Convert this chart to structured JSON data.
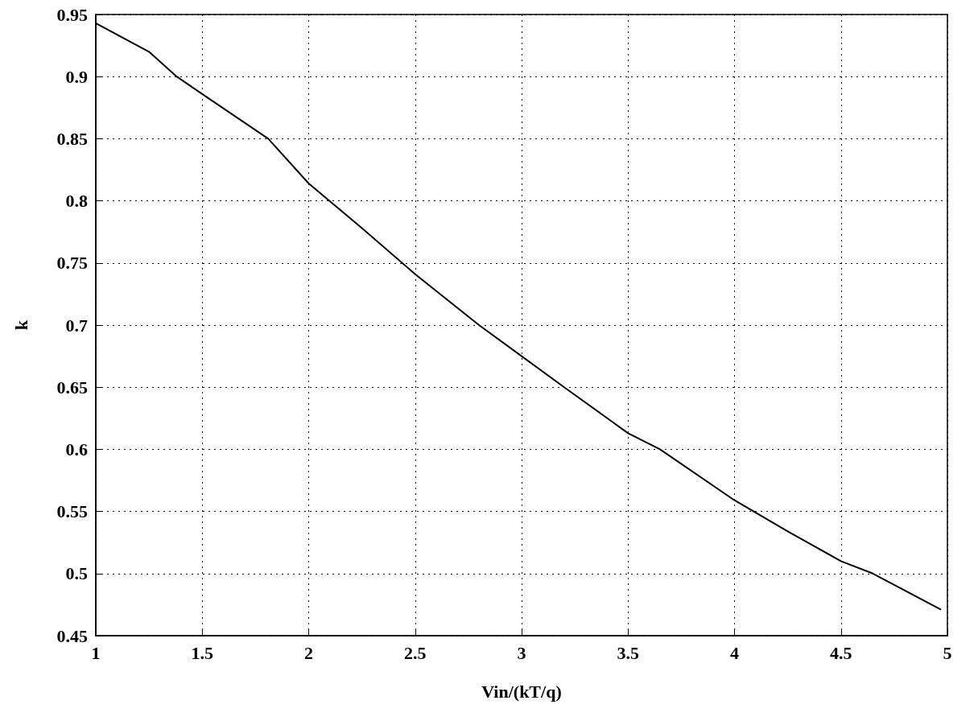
{
  "chart_data": {
    "type": "line",
    "xlabel": "Vin/(kT/q)",
    "ylabel": "k",
    "series": [
      {
        "color": "#000000",
        "x": [
          1,
          1.25,
          1.38,
          1.5,
          1.81,
          2,
          2.25,
          2.5,
          2.8,
          3,
          3.2,
          3.5,
          3.65,
          4,
          4.25,
          4.5,
          4.65,
          4.97
        ],
        "values": [
          0.943,
          0.92,
          0.9,
          0.886,
          0.85,
          0.814,
          0.778,
          0.741,
          0.7,
          0.675,
          0.65,
          0.613,
          0.6,
          0.559,
          0.534,
          0.51,
          0.5,
          0.471
        ]
      }
    ],
    "xlim": [
      1,
      5
    ],
    "xticks": [
      1,
      1.5,
      2,
      2.5,
      3,
      3.5,
      4,
      4.5,
      5
    ],
    "ylim": [
      0.45,
      0.95
    ],
    "yticks": [
      0.45,
      0.5,
      0.55,
      0.6,
      0.65,
      0.7,
      0.75,
      0.8,
      0.85,
      0.9,
      0.95
    ],
    "grid": true,
    "marker": "none",
    "line_style": "solid"
  }
}
